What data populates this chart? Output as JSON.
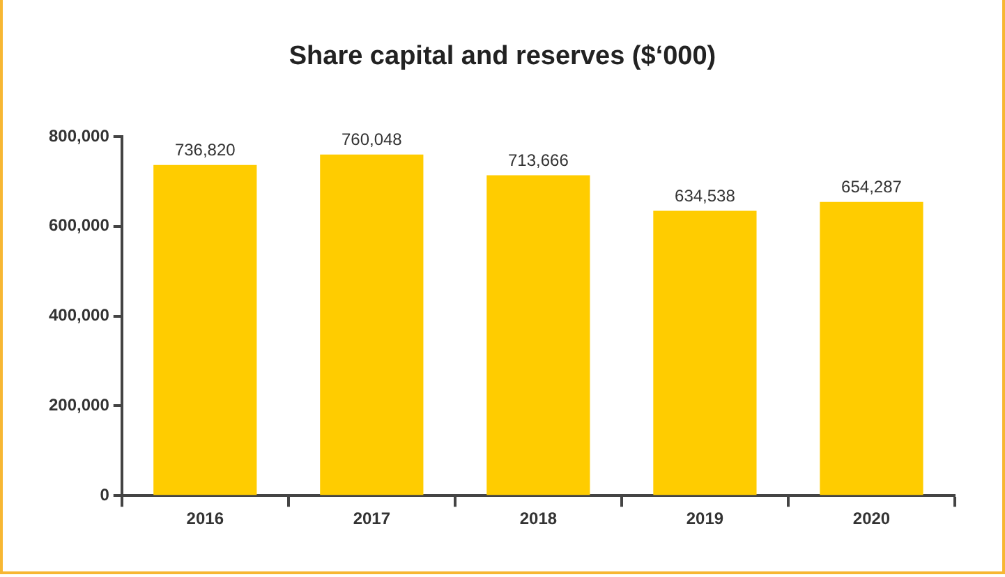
{
  "chart_data": {
    "type": "bar",
    "title": "Share capital and reserves ($‘000)",
    "categories": [
      "2016",
      "2017",
      "2018",
      "2019",
      "2020"
    ],
    "values": [
      736820,
      760048,
      713666,
      634538,
      654287
    ],
    "value_labels": [
      "736,820",
      "760,048",
      "713,666",
      "634,538",
      "654,287"
    ],
    "color": "#ffcc00",
    "ylim": [
      0,
      800000
    ],
    "yticks": [
      0,
      {
        "value": 200000,
        "label": "200,000"
      },
      {
        "value": 400000,
        "label": "400,000"
      },
      {
        "value": 600000,
        "label": "600,000"
      },
      {
        "value": 800000,
        "label": "800,000"
      }
    ],
    "grid": false,
    "legend": false
  }
}
